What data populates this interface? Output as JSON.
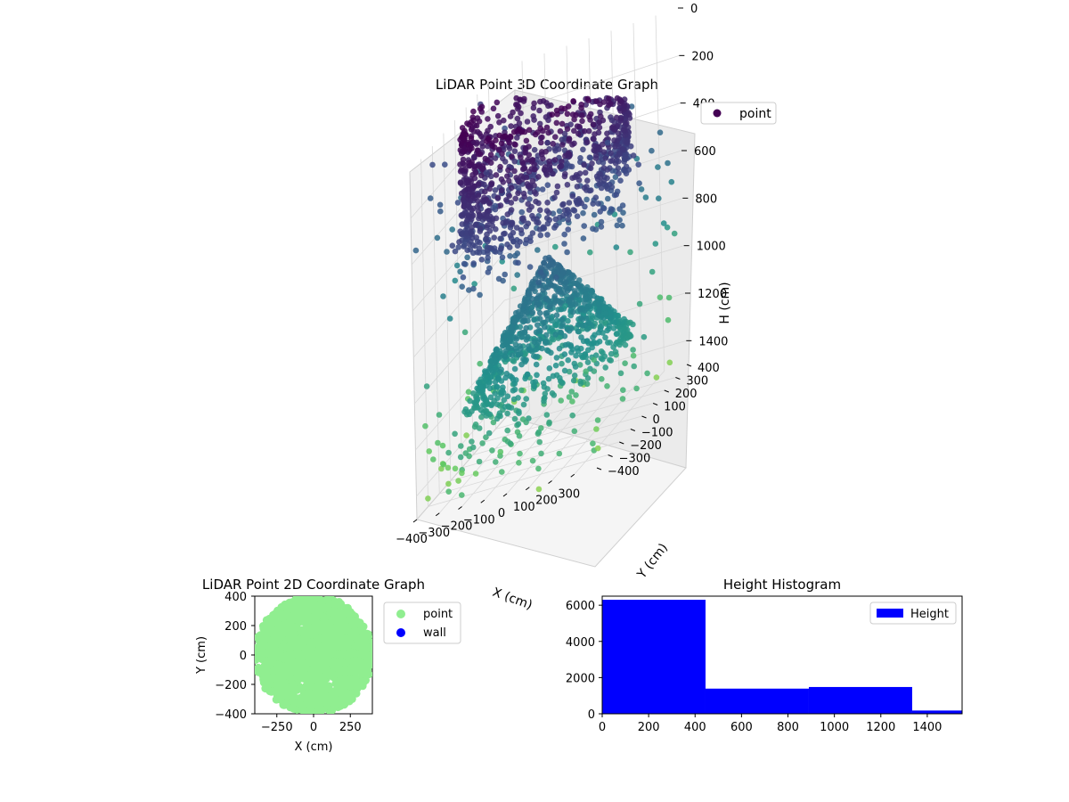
{
  "colors": {
    "histogram_bar": "#0000ff",
    "point_2d": "#90ee90",
    "wall_2d": "#0000ff",
    "colormap": [
      "#440154",
      "#3b528b",
      "#21908c",
      "#5dc863",
      "#fde725"
    ]
  },
  "chart_data": [
    {
      "type": "scatter",
      "projection": "3d",
      "title": "LiDAR Point 3D Coordinate Graph",
      "xlabel": "X (cm)",
      "ylabel": "Y (cm)",
      "zlabel": "H (cm)",
      "x_ticks": [
        "−400",
        "−300",
        "−200",
        "−100",
        "0",
        "100",
        "200",
        "300"
      ],
      "y_ticks": [
        "−400",
        "−300",
        "−200",
        "−100",
        "0",
        "100",
        "200",
        "300",
        "400"
      ],
      "z_ticks": [
        "0",
        "200",
        "400",
        "600",
        "800",
        "1000",
        "1200",
        "1400"
      ],
      "xlim": [
        -400,
        400
      ],
      "ylim": [
        -400,
        400
      ],
      "zlim": [
        0,
        1500
      ],
      "z_inverted": true,
      "grid": true,
      "legend": {
        "position": "upper-right",
        "entries": [
          "point"
        ]
      },
      "colormap": "viridis (by height)",
      "structure": {
        "cylinder": {
          "radius": 330,
          "z_range": [
            0,
            500
          ]
        },
        "cone": {
          "apex_z": 700,
          "base_z": 1200,
          "base_radius": 330
        },
        "floor_points_z_range": [
          1200,
          1500
        ]
      }
    },
    {
      "type": "scatter",
      "title": "LiDAR Point 2D Coordinate Graph",
      "xlabel": "X (cm)",
      "ylabel": "Y (cm)",
      "xlim": [
        -400,
        400
      ],
      "ylim": [
        -400,
        400
      ],
      "x_ticks": [
        "−250",
        "0",
        "250"
      ],
      "y_ticks": [
        "400",
        "200",
        "0",
        "−200",
        "−400"
      ],
      "series": [
        {
          "name": "point",
          "color": "#90ee90",
          "count": "dense disc"
        },
        {
          "name": "wall",
          "color": "#0000ff",
          "count": 0
        }
      ],
      "legend": {
        "position": "outside-right",
        "entries": [
          "point",
          "wall"
        ]
      }
    },
    {
      "type": "bar",
      "subtype": "histogram",
      "title": "Height Histogram",
      "bins": [
        {
          "range": [
            0,
            445
          ],
          "count": 6300
        },
        {
          "range": [
            445,
            890
          ],
          "count": 1390
        },
        {
          "range": [
            890,
            1335
          ],
          "count": 1480
        },
        {
          "range": [
            1335,
            1550
          ],
          "count": 180
        }
      ],
      "xlim": [
        0,
        1550
      ],
      "ylim": [
        0,
        6500
      ],
      "x_ticks": [
        "0",
        "200",
        "400",
        "600",
        "800",
        "1000",
        "1200",
        "1400"
      ],
      "y_ticks": [
        "6000",
        "4000",
        "2000",
        "0"
      ],
      "legend": {
        "position": "upper-right",
        "entries": [
          "Height"
        ]
      },
      "series": [
        {
          "name": "Height",
          "color": "#0000ff"
        }
      ]
    }
  ]
}
